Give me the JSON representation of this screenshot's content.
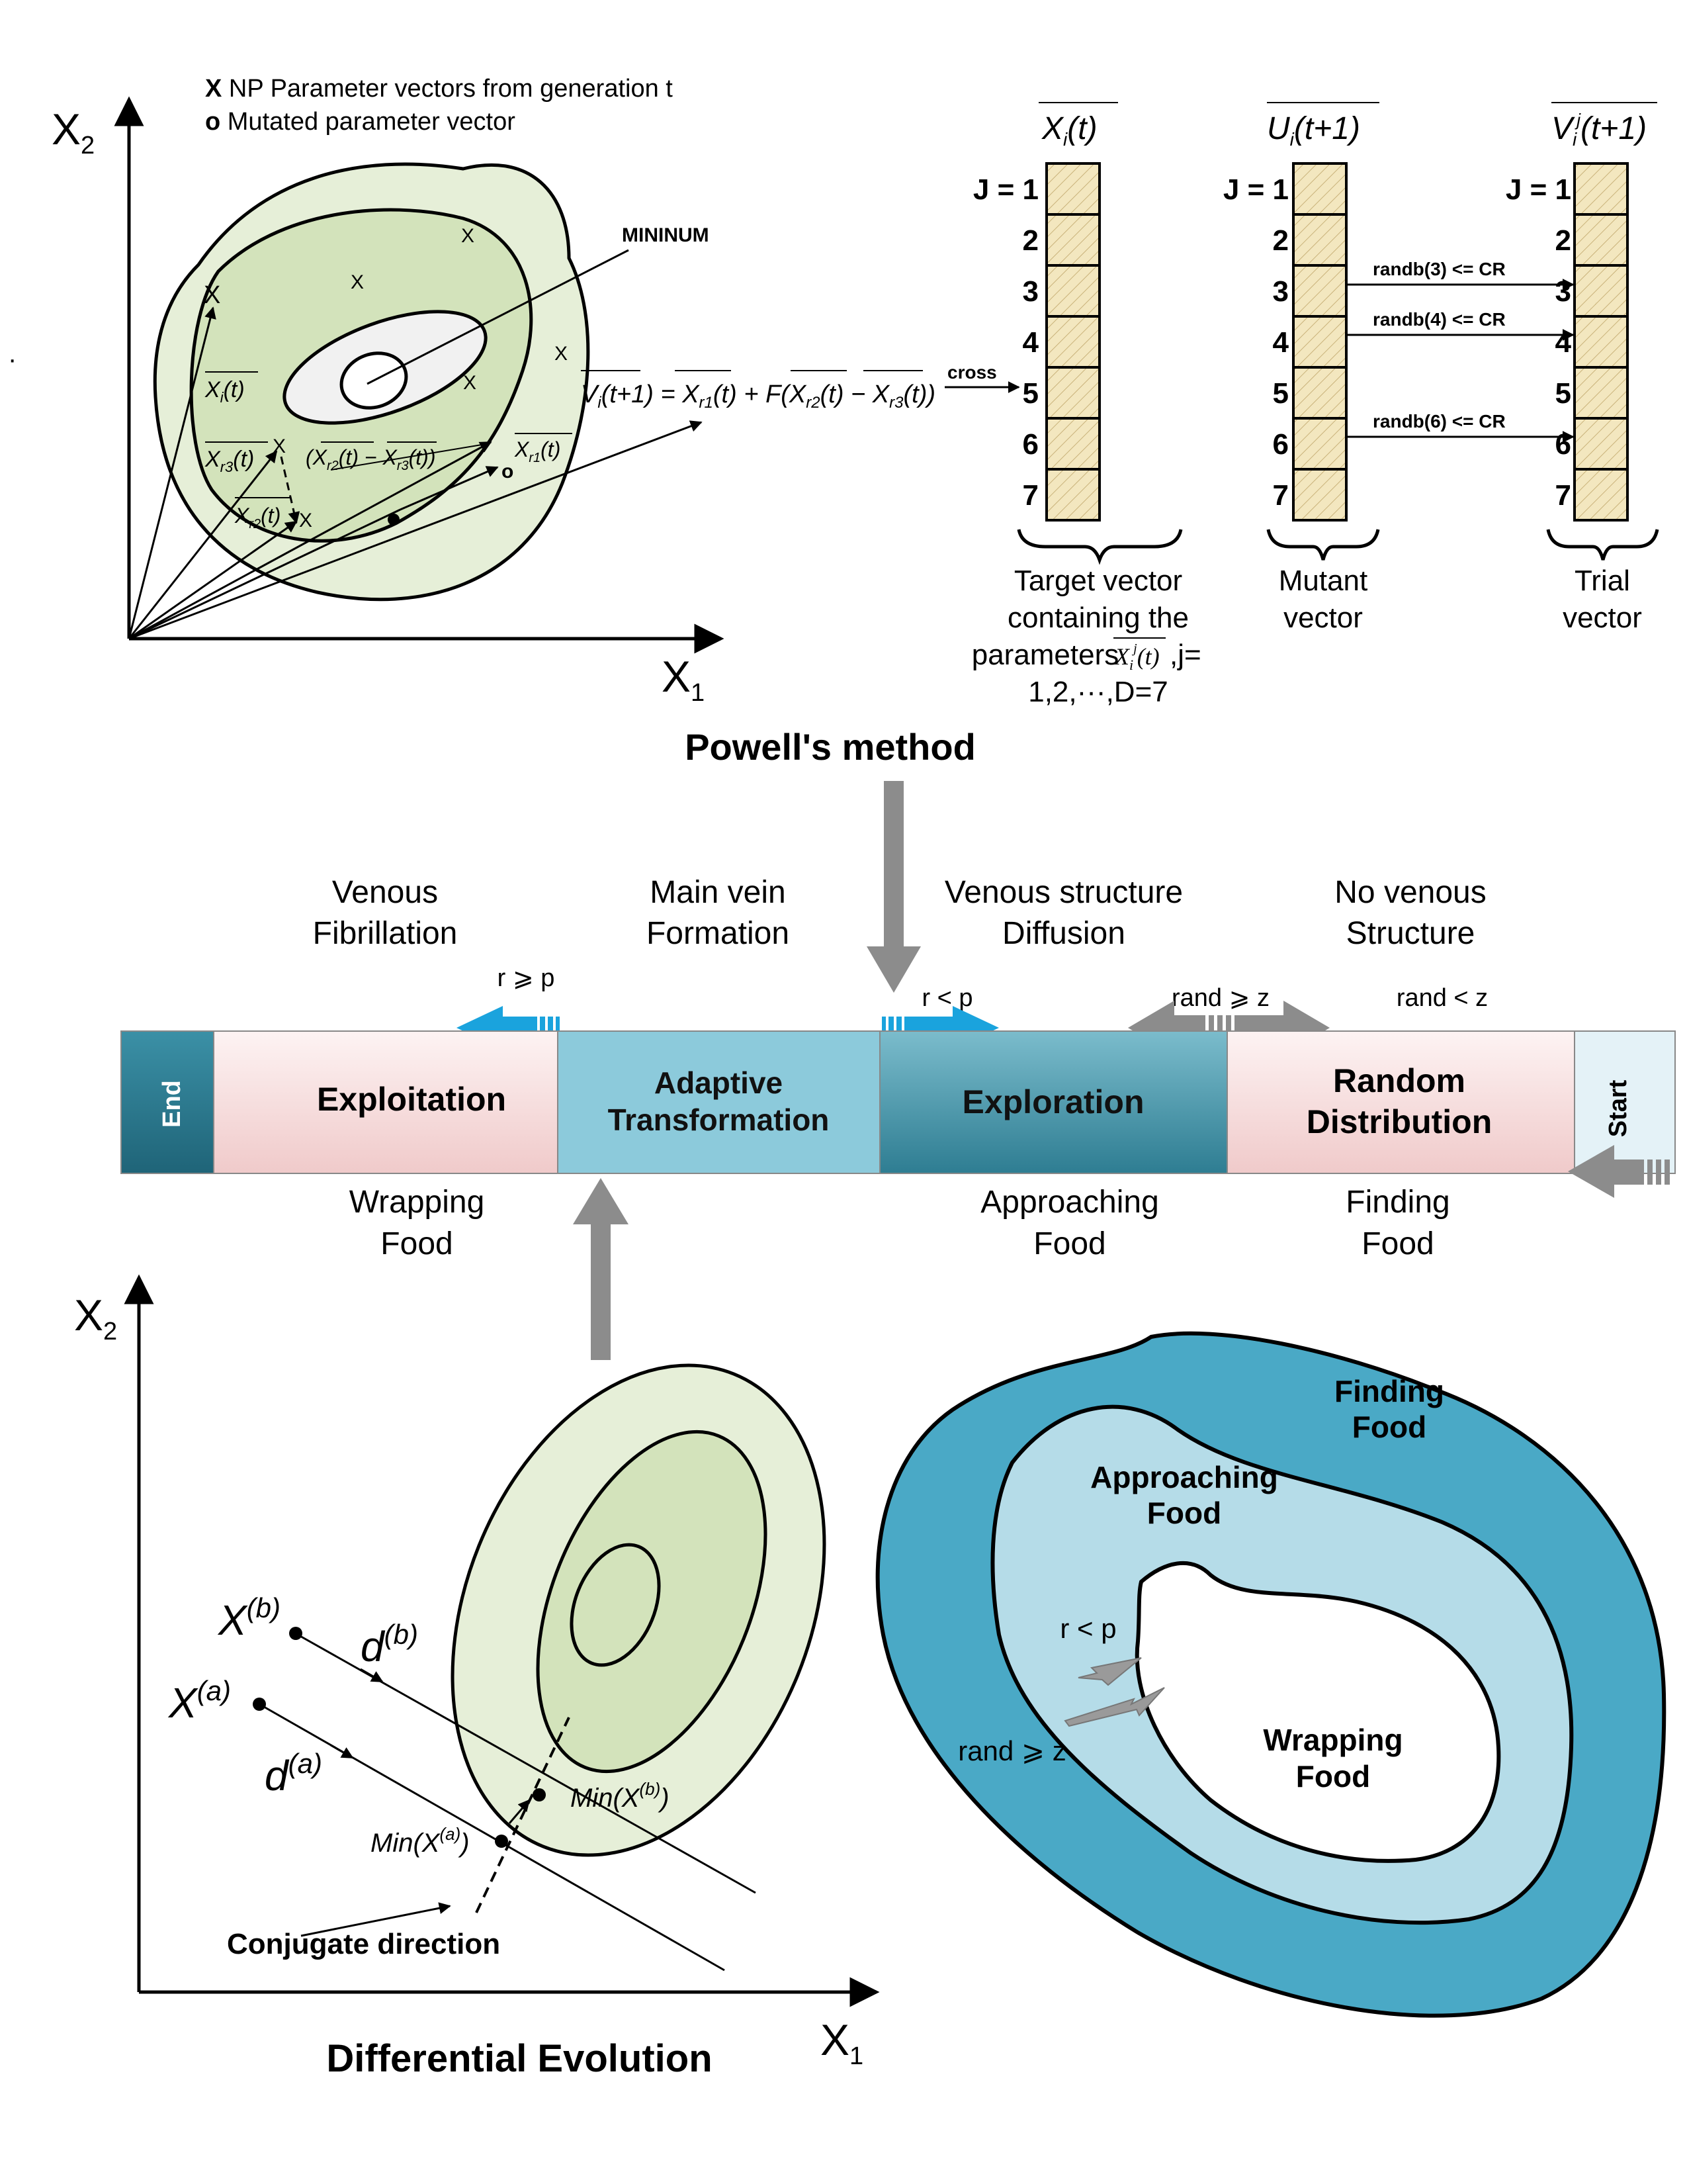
{
  "de_panel": {
    "legend_x_symbol": "X",
    "legend_x_text": "NP Parameter vectors from generation t",
    "legend_o_symbol": "o",
    "legend_o_text": "Mutated parameter vector",
    "axis_y_base": "X",
    "axis_y_sub": "2",
    "axis_x_base": "X",
    "axis_x_sub": "1",
    "minimum_label": "MININUM",
    "pop_marker": "X",
    "xi_label": "X",
    "xi_sub": "i",
    "xi_t": "(t)",
    "xr3_label": "X",
    "xr3_sub": "r3",
    "xr3_t": "(t)",
    "xr2_label": "X",
    "xr2_sub": "r2",
    "xr2_t": "(t)",
    "xr1_label": "X",
    "xr1_sub": "r1",
    "xr1_t": "(t)",
    "diff_label": "(X",
    "diff_sub1": "r2",
    "diff_mid": "(t) − X",
    "diff_sub2": "r3",
    "diff_end": "(t))",
    "mutation_formula": "V",
    "mutation_sub": "i",
    "mutation_rest": "(t+1) = X",
    "mutation_sub_r1": "r1",
    "mutation_mid": "(t) + F(X",
    "mutation_sub_r2": "r2",
    "mutation_mid2": "(t) − X",
    "mutation_sub_r3": "r3",
    "mutation_end": "(t))",
    "cross_label": "cross",
    "mutated_marker": "o"
  },
  "vectors": {
    "target_header": "X",
    "target_header_sub": "i",
    "target_header_t": "(t)",
    "mutant_header": "U",
    "mutant_header_sub": "i",
    "mutant_header_t": "(t+1)",
    "trial_header": "V",
    "trial_header_sub": "i",
    "trial_header_sup": "j",
    "trial_header_t": "(t+1)",
    "rows_target": [
      "J = 1",
      "2",
      "3",
      "4",
      "5",
      "6",
      "7"
    ],
    "rows_mutant": [
      "J = 1",
      "2",
      "3",
      "4",
      "5",
      "6",
      "7"
    ],
    "rows_trial": [
      "J = 1",
      "2",
      "3",
      "4",
      "5",
      "6",
      "7"
    ],
    "randb": [
      "randb(3) <= CR",
      "randb(4) <= CR",
      "randb(6) <= CR"
    ],
    "target_caption": [
      "Target vector",
      "containing the",
      "parameters",
      "1,2,···,D=7"
    ],
    "target_caption_x": "X",
    "target_caption_sub": "i",
    "target_caption_sup": "j",
    "target_caption_t": "(t)",
    "target_caption_j": ",j=",
    "mutant_caption": [
      "Mutant",
      "vector"
    ],
    "trial_caption": [
      "Trial",
      "vector"
    ]
  },
  "powell_title": "Powell's method",
  "de_title": "Differential Evolution",
  "phases_top": [
    [
      "Venous",
      "Fibrillation"
    ],
    [
      "Main vein",
      "Formation"
    ],
    [
      "Venous structure",
      "Diffusion"
    ],
    [
      "No venous",
      "Structure"
    ]
  ],
  "conditions": {
    "r_ge_p": "r ⩾ p",
    "r_lt_p": "r  <  p",
    "rand_ge_z": "rand ⩾ z",
    "rand_lt_z": "rand  <  z"
  },
  "band": {
    "end": "End",
    "exploitation": "Exploitation",
    "adaptive": [
      "Adaptive",
      "Transformation"
    ],
    "exploration": "Exploration",
    "random": [
      "Random",
      "Distribution"
    ],
    "start": "Start"
  },
  "phases_bottom": [
    [
      "Wrapping",
      "Food"
    ],
    [
      "Approaching",
      "Food"
    ],
    [
      "Finding",
      "Food"
    ]
  ],
  "powell_panel": {
    "axis_y_base": "X",
    "axis_y_sub": "2",
    "axis_x_base": "X",
    "axis_x_sub": "1",
    "xb": "X",
    "xb_sup": "(b)",
    "xa": "X",
    "xa_sup": "(a)",
    "db": "d",
    "db_sup": "(b)",
    "da": "d",
    "da_sup": "(a)",
    "min_b": "Min(X",
    "min_b_sup": "(b)",
    "min_b_end": ")",
    "min_a": "Min(X",
    "min_a_sup": "(a)",
    "min_a_end": ")",
    "conjugate": "Conjugate direction"
  },
  "food_panel": {
    "finding": [
      "Finding",
      "Food"
    ],
    "approaching": [
      "Approaching",
      "Food"
    ],
    "wrapping": [
      "Wrapping",
      "Food"
    ],
    "r_lt_p": "r  <  p",
    "rand_ge_z": "rand ⩾ z"
  },
  "colors": {
    "green_outer": "#e6efd8",
    "green_mid": "#d3e3bb",
    "green_inner": "#f1f1f1",
    "cell_fill": "#f3e7bf",
    "band_pink": "#f4d6d6",
    "band_adaptive": "#8ccadb",
    "band_exploration": "#3a8fa3",
    "band_end": "#2d7f95",
    "band_start": "#e4f2f7",
    "arrow_blue": "#1aa3dd",
    "arrow_gray": "#8c8c8c",
    "food_outer": "#4aa9c6",
    "food_mid": "#b5dce8"
  },
  "stray_mark": "·"
}
